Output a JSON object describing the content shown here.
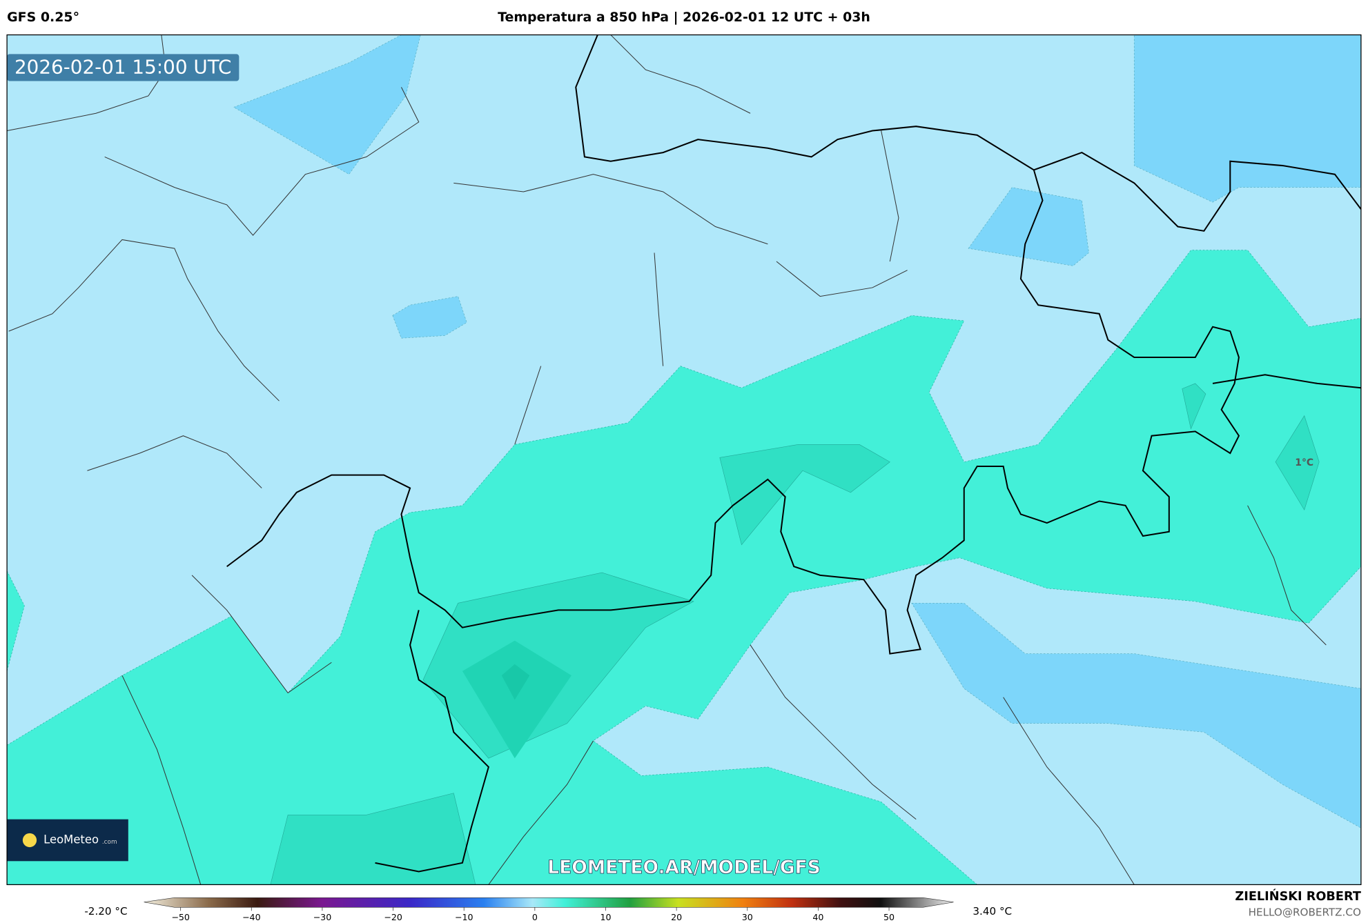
{
  "header": {
    "model": "GFS 0.25°",
    "title": "Temperatura a 850 hPa | 2026-02-01 12 UTC + 03h"
  },
  "map": {
    "timestamp": "2026-02-01 15:00 UTC",
    "contour_label": "1°C",
    "watermark": "LEOMETEO.AR/MODEL/GFS"
  },
  "logo": {
    "name": "LeoMeteo",
    "suffix": ".com"
  },
  "colorbar": {
    "min_label": "-2.20 °C",
    "max_label": "3.40 °C",
    "ticks": [
      {
        "value": -50,
        "label": "−50"
      },
      {
        "value": -40,
        "label": "−40"
      },
      {
        "value": -30,
        "label": "−30"
      },
      {
        "value": -20,
        "label": "−20"
      },
      {
        "value": -10,
        "label": "−10"
      },
      0,
      10,
      20,
      30,
      40,
      50
    ]
  },
  "credits": {
    "author": "ZIELIŃSKI ROBERT",
    "contact": "HELLO@ROBERTZ.CO"
  }
}
